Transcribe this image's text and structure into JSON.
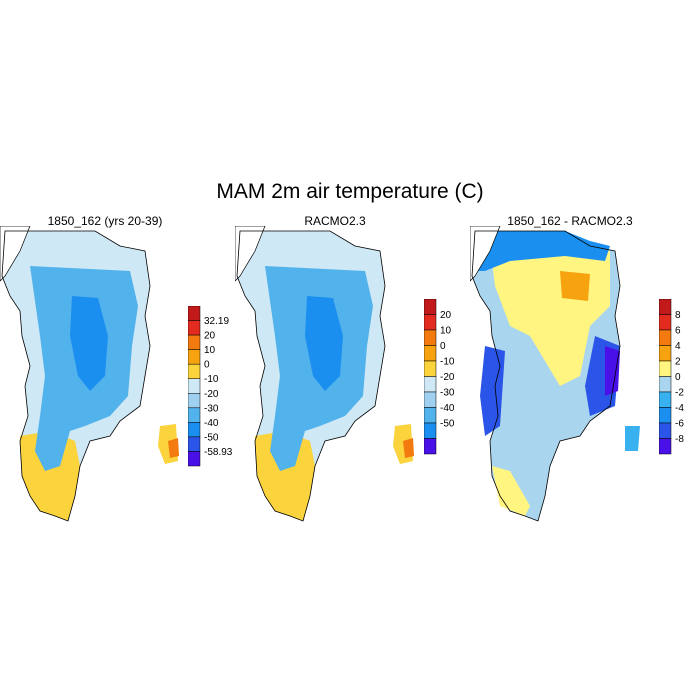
{
  "title": "MAM 2m air temperature (C)",
  "chart_data": [
    {
      "type": "heatmap",
      "title": "1850_162 (yrs 20-39)",
      "colorbar": {
        "labels": [
          "32.19",
          "20",
          "10",
          "0",
          "-10",
          "-20",
          "-30",
          "-40",
          "-50",
          "-58.93"
        ],
        "colors": [
          "#c21a1a",
          "#e32b1f",
          "#f37a0f",
          "#f7a310",
          "#fbd33c",
          "#cfe8f5",
          "#9fd0f0",
          "#52b2ec",
          "#1a8ff0",
          "#2a55e8",
          "#4a10e8"
        ]
      },
      "regions": [
        {
          "band": "-40 to -30",
          "color": "#1a8ff0"
        },
        {
          "band": "-30 to -20",
          "color": "#52b2ec"
        },
        {
          "band": "-20 to -10",
          "color": "#cfe8f5"
        },
        {
          "band": "-10 to 0",
          "color": "#fbd33c"
        },
        {
          "band": "0 to 10",
          "color": "#f37a0f"
        }
      ]
    },
    {
      "type": "heatmap",
      "title": "RACMO2.3",
      "colorbar": {
        "labels": [
          "20",
          "10",
          "0",
          "-10",
          "-20",
          "-30",
          "-40",
          "-50"
        ],
        "colors": [
          "#c21a1a",
          "#e32b1f",
          "#f37a0f",
          "#f7a310",
          "#fbd33c",
          "#cfe8f5",
          "#9fd0f0",
          "#52b2ec",
          "#1a8ff0",
          "#4a10e8"
        ]
      },
      "regions": [
        {
          "band": "-40 to -30",
          "color": "#1a8ff0"
        },
        {
          "band": "-30 to -20",
          "color": "#52b2ec"
        },
        {
          "band": "-20 to -10",
          "color": "#cfe8f5"
        },
        {
          "band": "-10 to 0",
          "color": "#fbd33c"
        },
        {
          "band": "0 to 10",
          "color": "#f37a0f"
        }
      ]
    },
    {
      "type": "heatmap",
      "title": "1850_162 - RACMO2.3",
      "colorbar": {
        "labels": [
          "8",
          "6",
          "4",
          "2",
          "0",
          "-2",
          "-4",
          "-6",
          "-8"
        ],
        "colors": [
          "#c21a1a",
          "#e32b1f",
          "#f37a0f",
          "#f7a310",
          "#fff580",
          "#aad5ef",
          "#39b0f0",
          "#1a8ff0",
          "#2a55e8",
          "#4a10e8"
        ]
      },
      "regions": [
        {
          "band": "0 to 2",
          "color": "#fff580"
        },
        {
          "band": "2 to 4",
          "color": "#f7a310"
        },
        {
          "band": "-2 to 0",
          "color": "#aad5ef"
        },
        {
          "band": "-4 to -2",
          "color": "#39b0f0"
        },
        {
          "band": "-6 to -4",
          "color": "#1a8ff0"
        },
        {
          "band": "-8 to -6",
          "color": "#2a55e8"
        },
        {
          "band": "below -8",
          "color": "#4a10e8"
        }
      ]
    }
  ]
}
